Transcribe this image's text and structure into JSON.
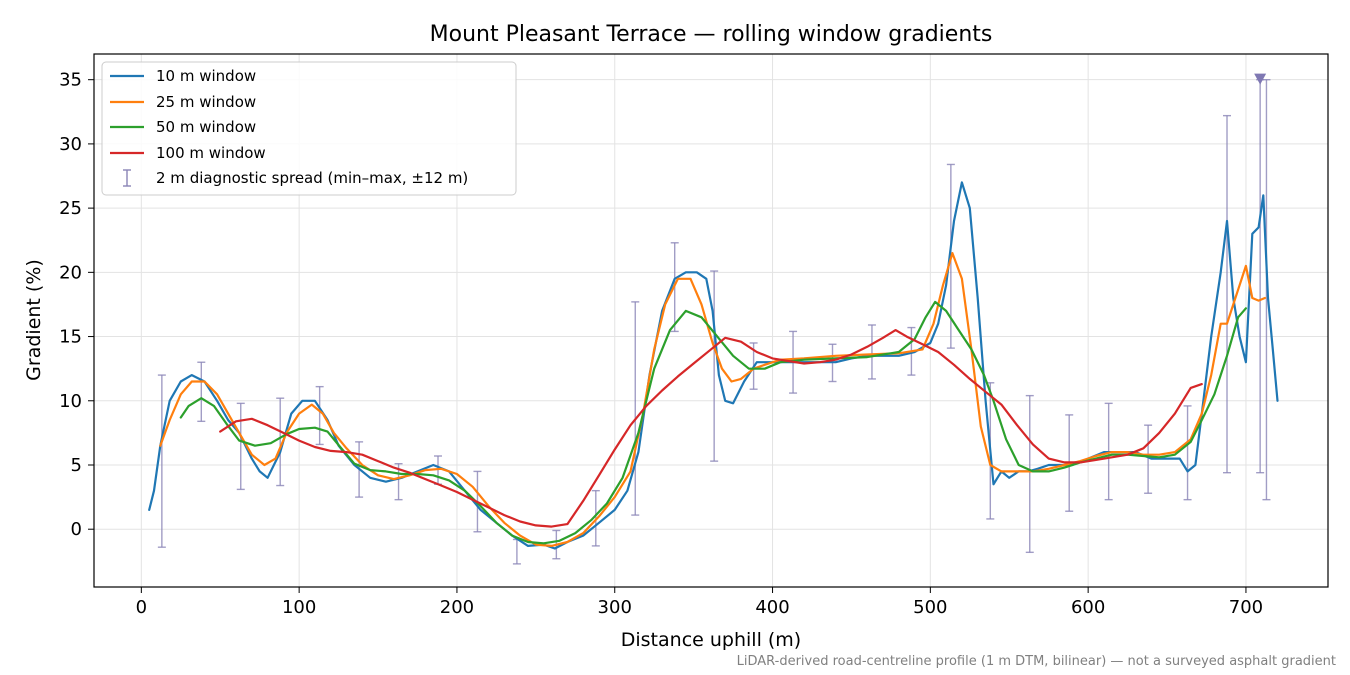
{
  "chart_data": {
    "type": "line",
    "title": "Mount Pleasant Terrace — rolling window gradients",
    "xlabel": "Distance uphill (m)",
    "ylabel": "Gradient (%)",
    "footnote": "LiDAR-derived road-centreline profile (1 m DTM, bilinear) — not a surveyed asphalt gradient",
    "xlim": [
      -30,
      752
    ],
    "ylim": [
      -4.5,
      37
    ],
    "xticks": [
      0,
      100,
      200,
      300,
      400,
      500,
      600,
      700
    ],
    "yticks": [
      0,
      5,
      10,
      15,
      20,
      25,
      30,
      35
    ],
    "grid": true,
    "legend_position": "upper-left",
    "series": [
      {
        "name": "10 m window",
        "color": "#1f77b4",
        "x": [
          5,
          8,
          12,
          18,
          25,
          32,
          40,
          48,
          55,
          62,
          70,
          75,
          80,
          88,
          95,
          102,
          110,
          118,
          125,
          135,
          145,
          155,
          165,
          175,
          185,
          195,
          205,
          215,
          225,
          235,
          245,
          255,
          262,
          270,
          280,
          290,
          300,
          308,
          315,
          322,
          330,
          338,
          345,
          352,
          358,
          362,
          366,
          370,
          375,
          382,
          390,
          400,
          410,
          420,
          430,
          440,
          450,
          460,
          470,
          480,
          490,
          500,
          505,
          510,
          515,
          520,
          525,
          530,
          535,
          540,
          545,
          550,
          556,
          562,
          568,
          575,
          582,
          590,
          600,
          610,
          620,
          630,
          640,
          650,
          658,
          663,
          668,
          672,
          678,
          684,
          688,
          692,
          696,
          700,
          704,
          708,
          711,
          714,
          717,
          720
        ],
        "y": [
          1.5,
          3,
          6.5,
          10,
          11.5,
          12,
          11.5,
          10,
          8.5,
          7.5,
          5.5,
          4.5,
          4,
          6,
          9,
          10,
          10,
          8.5,
          6.5,
          5,
          4,
          3.7,
          4,
          4.5,
          5,
          4.5,
          3,
          1.5,
          0.5,
          -0.5,
          -1.3,
          -1.2,
          -1.5,
          -1,
          -0.5,
          0.5,
          1.5,
          3,
          6,
          12,
          17,
          19.5,
          20,
          20,
          19.5,
          17,
          12,
          10,
          9.8,
          11.5,
          13,
          13,
          13,
          13,
          13,
          13,
          13.3,
          13.5,
          13.5,
          13.5,
          13.8,
          14.5,
          16,
          19,
          24,
          27,
          25,
          18,
          10,
          3.5,
          4.5,
          4,
          4.5,
          4.5,
          4.7,
          5,
          5,
          5,
          5.5,
          6,
          6,
          6,
          5.5,
          5.5,
          5.5,
          4.5,
          5,
          9,
          15,
          20,
          24,
          18,
          15,
          13,
          23,
          23.5,
          26,
          18,
          14,
          10
        ]
      },
      {
        "name": "25 m window",
        "color": "#ff7f0e",
        "x": [
          12,
          18,
          25,
          32,
          40,
          48,
          55,
          62,
          70,
          78,
          85,
          92,
          100,
          108,
          115,
          122,
          130,
          140,
          150,
          160,
          170,
          180,
          190,
          200,
          210,
          220,
          230,
          240,
          250,
          260,
          270,
          280,
          290,
          300,
          310,
          318,
          325,
          332,
          340,
          348,
          355,
          362,
          368,
          374,
          380,
          388,
          395,
          405,
          420,
          440,
          460,
          480,
          495,
          502,
          508,
          514,
          520,
          526,
          532,
          538,
          545,
          555,
          565,
          575,
          585,
          595,
          605,
          615,
          625,
          635,
          645,
          655,
          665,
          672,
          678,
          684,
          688,
          692,
          696,
          700,
          704,
          708,
          712
        ],
        "y": [
          6.5,
          8.5,
          10.5,
          11.5,
          11.5,
          10.5,
          9,
          7.5,
          5.8,
          5,
          5.5,
          7.5,
          9,
          9.7,
          9,
          7.5,
          6.3,
          5,
          4.2,
          3.9,
          4.2,
          4.6,
          4.7,
          4.3,
          3.3,
          1.8,
          0.5,
          -0.5,
          -1.2,
          -1.3,
          -1,
          -0.3,
          1,
          2.5,
          4.5,
          9,
          14,
          17.5,
          19.5,
          19.5,
          17.5,
          14.5,
          12.5,
          11.5,
          11.7,
          12.5,
          12.8,
          13.2,
          13.3,
          13.5,
          13.6,
          13.7,
          14,
          16,
          19,
          21.5,
          19.5,
          14,
          8,
          5,
          4.5,
          4.5,
          4.5,
          4.7,
          5,
          5.3,
          5.7,
          6,
          6,
          5.8,
          5.8,
          6,
          7,
          9,
          12,
          16,
          16,
          17.5,
          19,
          20.5,
          18,
          17.8,
          18
        ]
      },
      {
        "name": "50 m window",
        "color": "#2ca02c",
        "x": [
          25,
          30,
          38,
          46,
          54,
          62,
          72,
          82,
          92,
          100,
          110,
          118,
          126,
          135,
          145,
          155,
          165,
          175,
          185,
          195,
          205,
          215,
          225,
          235,
          245,
          255,
          265,
          275,
          285,
          295,
          305,
          315,
          325,
          335,
          345,
          355,
          365,
          375,
          385,
          395,
          405,
          420,
          440,
          460,
          480,
          490,
          497,
          503,
          510,
          518,
          526,
          534,
          540,
          548,
          556,
          565,
          575,
          585,
          595,
          605,
          615,
          625,
          635,
          645,
          655,
          665,
          672,
          680,
          688,
          695,
          700
        ],
        "y": [
          8.7,
          9.6,
          10.2,
          9.6,
          8.2,
          6.9,
          6.5,
          6.7,
          7.4,
          7.8,
          7.9,
          7.6,
          6.4,
          5.1,
          4.6,
          4.5,
          4.3,
          4.3,
          4.2,
          3.8,
          3,
          1.8,
          0.5,
          -0.5,
          -1,
          -1.1,
          -0.9,
          -0.3,
          0.7,
          2,
          4,
          7.5,
          12.5,
          15.5,
          17,
          16.5,
          15,
          13.5,
          12.5,
          12.5,
          13,
          13.2,
          13.3,
          13.4,
          13.8,
          14.8,
          16.5,
          17.7,
          17,
          15.5,
          14,
          12,
          10,
          7,
          5,
          4.5,
          4.5,
          4.8,
          5.2,
          5.5,
          5.8,
          5.8,
          5.7,
          5.6,
          5.8,
          6.8,
          8.5,
          10.5,
          13.5,
          16.5,
          17.2
        ]
      },
      {
        "name": "100 m window",
        "color": "#d62728",
        "x": [
          50,
          60,
          70,
          80,
          90,
          100,
          110,
          120,
          130,
          140,
          150,
          160,
          170,
          180,
          190,
          200,
          210,
          220,
          230,
          240,
          250,
          260,
          270,
          280,
          290,
          300,
          310,
          320,
          330,
          340,
          350,
          360,
          370,
          380,
          390,
          400,
          410,
          420,
          430,
          440,
          450,
          460,
          470,
          478,
          485,
          495,
          505,
          515,
          525,
          535,
          545,
          555,
          565,
          575,
          585,
          595,
          605,
          615,
          625,
          635,
          645,
          655,
          665,
          672
        ],
        "y": [
          7.6,
          8.4,
          8.6,
          8.1,
          7.5,
          6.9,
          6.4,
          6.1,
          6,
          5.8,
          5.3,
          4.8,
          4.4,
          3.9,
          3.4,
          2.9,
          2.3,
          1.7,
          1.1,
          0.6,
          0.3,
          0.2,
          0.4,
          2.2,
          4.2,
          6.2,
          8.1,
          9.6,
          10.8,
          11.9,
          12.9,
          13.9,
          14.9,
          14.6,
          13.8,
          13.3,
          13.1,
          12.9,
          13,
          13.2,
          13.6,
          14.2,
          14.9,
          15.5,
          15,
          14.4,
          13.8,
          12.8,
          11.7,
          10.7,
          9.7,
          8.1,
          6.6,
          5.5,
          5.2,
          5.2,
          5.4,
          5.6,
          5.8,
          6.3,
          7.5,
          9,
          11,
          11.3
        ]
      }
    ],
    "diagnostic_spread": {
      "name": "2 m diagnostic spread (min–max, ±12 m)",
      "color": "#8a84b6",
      "points": [
        {
          "x": 13,
          "min": -1.4,
          "max": 12
        },
        {
          "x": 38,
          "min": 8.4,
          "max": 13
        },
        {
          "x": 63,
          "min": 3.1,
          "max": 9.8
        },
        {
          "x": 88,
          "min": 3.4,
          "max": 10.2
        },
        {
          "x": 113,
          "min": 6.6,
          "max": 11.1
        },
        {
          "x": 138,
          "min": 2.5,
          "max": 6.8
        },
        {
          "x": 163,
          "min": 2.3,
          "max": 5.1
        },
        {
          "x": 188,
          "min": 3.5,
          "max": 5.7
        },
        {
          "x": 213,
          "min": -0.2,
          "max": 4.5
        },
        {
          "x": 238,
          "min": -2.7,
          "max": -0.8
        },
        {
          "x": 263,
          "min": -2.3,
          "max": -0.1
        },
        {
          "x": 288,
          "min": -1.3,
          "max": 3
        },
        {
          "x": 313,
          "min": 1.1,
          "max": 17.7
        },
        {
          "x": 338,
          "min": 15.4,
          "max": 22.3
        },
        {
          "x": 363,
          "min": 5.3,
          "max": 20.1
        },
        {
          "x": 388,
          "min": 10.9,
          "max": 14.5
        },
        {
          "x": 413,
          "min": 10.6,
          "max": 15.4
        },
        {
          "x": 438,
          "min": 11.5,
          "max": 14.4
        },
        {
          "x": 463,
          "min": 11.7,
          "max": 15.9
        },
        {
          "x": 488,
          "min": 12,
          "max": 15.7
        },
        {
          "x": 513,
          "min": 14.1,
          "max": 28.4
        },
        {
          "x": 538,
          "min": 0.8,
          "max": 11.4
        },
        {
          "x": 563,
          "min": -1.8,
          "max": 10.4
        },
        {
          "x": 588,
          "min": 1.4,
          "max": 8.9
        },
        {
          "x": 613,
          "min": 2.3,
          "max": 9.8
        },
        {
          "x": 638,
          "min": 2.8,
          "max": 8.1
        },
        {
          "x": 663,
          "min": 2.3,
          "max": 9.6
        },
        {
          "x": 688,
          "min": 4.4,
          "max": 32.2
        },
        {
          "x": 709,
          "min": 4.4,
          "max": 35
        },
        {
          "x": 713,
          "min": 2.3,
          "max": 35
        }
      ]
    },
    "marker": {
      "x": 709,
      "y": 35,
      "shape": "triangle-down",
      "color": "#7f78b3"
    }
  }
}
